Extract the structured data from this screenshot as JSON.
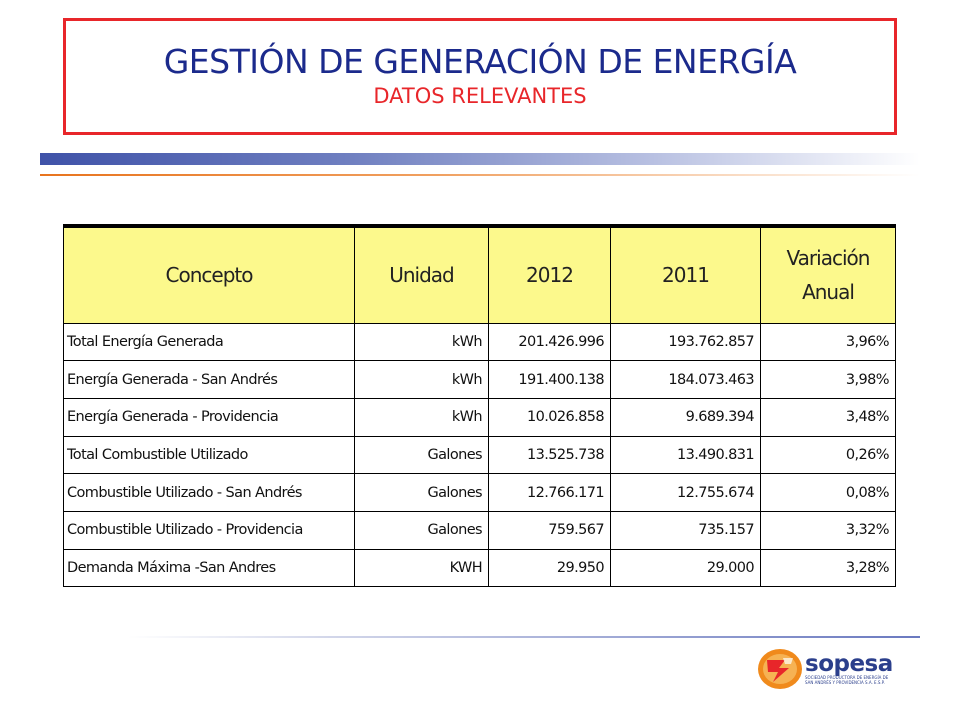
{
  "title": {
    "main": "GESTIÓN DE GENERACIÓN DE ENERGÍA",
    "subtitle": "DATOS RELEVANTES"
  },
  "table": {
    "headers": {
      "concepto": "Concepto",
      "unidad": "Unidad",
      "y2012": "2012",
      "y2011": "2011",
      "variacion_line1": "Variación",
      "variacion_line2": "Anual"
    },
    "rows": [
      {
        "concepto": "Total Energía Generada",
        "unidad": "kWh",
        "y2012": "201.426.996",
        "y2011": "193.762.857",
        "variacion": "3,96%"
      },
      {
        "concepto": "Energía Generada - San Andrés",
        "unidad": "kWh",
        "y2012": "191.400.138",
        "y2011": "184.073.463",
        "variacion": "3,98%"
      },
      {
        "concepto": "Energía Generada - Providencia",
        "unidad": "kWh",
        "y2012": "10.026.858",
        "y2011": "9.689.394",
        "variacion": "3,48%"
      },
      {
        "concepto": "Total Combustible Utilizado",
        "unidad": "Galones",
        "y2012": "13.525.738",
        "y2011": "13.490.831",
        "variacion": "0,26%"
      },
      {
        "concepto": "Combustible Utilizado - San Andrés",
        "unidad": "Galones",
        "y2012": "12.766.171",
        "y2011": "12.755.674",
        "variacion": "0,08%"
      },
      {
        "concepto": "Combustible Utilizado - Providencia",
        "unidad": "Galones",
        "y2012": "759.567",
        "y2011": "735.157",
        "variacion": "3,32%"
      },
      {
        "concepto": "Demanda Máxima -San Andres",
        "unidad": "KWH",
        "y2012": "29.950",
        "y2011": "29.000",
        "variacion": "3,28%"
      }
    ]
  },
  "logo": {
    "name": "sopesa",
    "tagline_line1": "SOCIEDAD PRODUCTORA DE ENERGÍA DE",
    "tagline_line2": "SAN ANDRÉS Y PROVIDENCIA S.A. E.S.P."
  },
  "colors": {
    "title_blue": "#1b2a8c",
    "accent_red": "#e8262a",
    "header_yellow": "#fcf98c",
    "logo_blue": "#2b3f8c",
    "logo_orange": "#f08a1c"
  }
}
